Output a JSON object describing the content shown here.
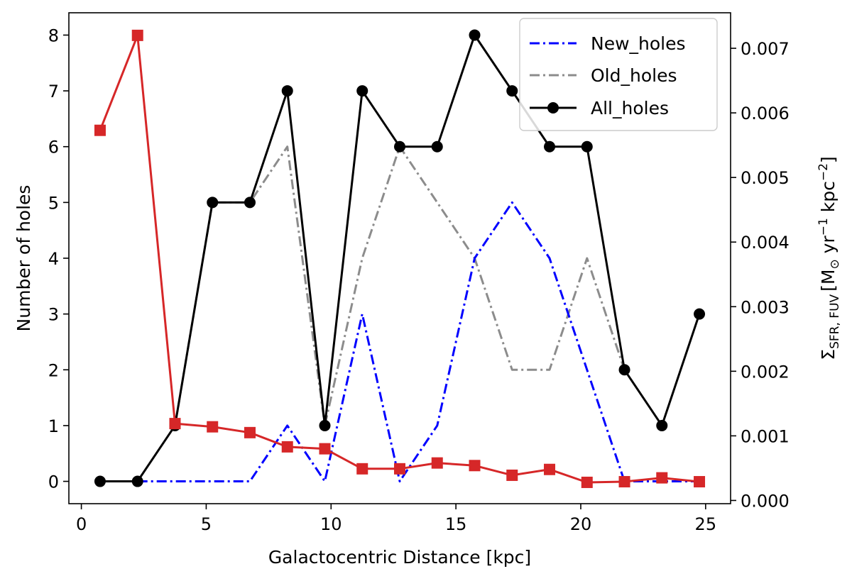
{
  "chart_data": {
    "type": "line",
    "xlabel": "Galactocentric Distance [kpc]",
    "ylabel_left": "Number of holes",
    "ylabel_right": {
      "sigma": "Σ",
      "sub": "SFR, FUV",
      "bracket_open": "[M",
      "sun": "⊙",
      "yr": " yr",
      "yr_exp": "−1",
      "kpc": " kpc",
      "kpc_exp": "−2",
      "bracket_close": "]",
      "color": "#d62728"
    },
    "xlim": [
      -0.5,
      26.0
    ],
    "ylim_left": [
      -0.4,
      8.4
    ],
    "ylim_right": [
      -5e-05,
      0.00755
    ],
    "x_ticks": [
      0,
      5,
      10,
      15,
      20,
      25
    ],
    "x_tick_labels": [
      "0",
      "5",
      "10",
      "15",
      "20",
      "25"
    ],
    "y_left_ticks": [
      0,
      1,
      2,
      3,
      4,
      5,
      6,
      7,
      8
    ],
    "y_left_tick_labels": [
      "0",
      "1",
      "2",
      "3",
      "4",
      "5",
      "6",
      "7",
      "8"
    ],
    "y_right_ticks": [
      0.0,
      0.001,
      0.002,
      0.003,
      0.004,
      0.005,
      0.006,
      0.007
    ],
    "y_right_tick_labels": [
      "0.000",
      "0.001",
      "0.002",
      "0.003",
      "0.004",
      "0.005",
      "0.006",
      "0.007"
    ],
    "x": [
      0.75,
      2.25,
      3.75,
      5.25,
      6.75,
      8.25,
      9.75,
      11.25,
      12.75,
      14.25,
      15.75,
      17.25,
      18.75,
      20.25,
      21.75,
      23.25,
      24.75
    ],
    "series": [
      {
        "name": "Old_holes",
        "axis": "left",
        "color": "#8c8c8c",
        "style": "dashdot",
        "x": [
          3.75,
          5.25,
          6.75,
          8.25,
          9.75,
          11.25,
          12.75,
          14.25,
          15.75,
          17.25,
          18.75,
          20.25,
          21.75
        ],
        "values": [
          1,
          5,
          5,
          6,
          1,
          4,
          6,
          5,
          4,
          2,
          2,
          4,
          2
        ]
      },
      {
        "name": "New_holes",
        "axis": "left",
        "color": "#0000ff",
        "style": "dashdot",
        "x": [
          2.25,
          3.75,
          5.25,
          6.75,
          8.25,
          9.75,
          11.25,
          12.75,
          14.25,
          15.75,
          17.25,
          18.75,
          20.25,
          21.75,
          23.25,
          24.75
        ],
        "values": [
          0,
          0,
          0,
          0,
          1,
          0,
          3,
          0,
          1,
          4,
          5,
          4,
          2,
          0,
          0,
          0
        ]
      },
      {
        "name": "All_holes",
        "axis": "left",
        "color": "#000000",
        "style": "solid",
        "marker": "circle",
        "x": [
          0.75,
          2.25,
          3.75,
          5.25,
          6.75,
          8.25,
          9.75,
          11.25,
          12.75,
          14.25,
          15.75,
          17.25,
          18.75,
          20.25,
          21.75,
          23.25,
          24.75
        ],
        "values": [
          0,
          0,
          1,
          5,
          5,
          7,
          1,
          7,
          6,
          6,
          8,
          7,
          6,
          6,
          2,
          1,
          3
        ]
      },
      {
        "name": "Sigma_SFR_FUV",
        "axis": "right",
        "color": "#d62728",
        "style": "solid",
        "marker": "square",
        "x": [
          0.75,
          2.25,
          3.75,
          5.25,
          6.75,
          8.25,
          9.75,
          11.25,
          12.75,
          14.25,
          15.75,
          17.25,
          18.75,
          20.25,
          21.75,
          23.25,
          24.75
        ],
        "values": [
          0.00573,
          0.0072,
          0.00119,
          0.00114,
          0.00105,
          0.00083,
          0.0008,
          0.00049,
          0.00049,
          0.00058,
          0.00054,
          0.00039,
          0.00048,
          0.00028,
          0.00029,
          0.00035,
          0.00029
        ]
      }
    ],
    "legend": {
      "position": "top-right",
      "entries": [
        "New_holes",
        "Old_holes",
        "All_holes"
      ]
    }
  }
}
